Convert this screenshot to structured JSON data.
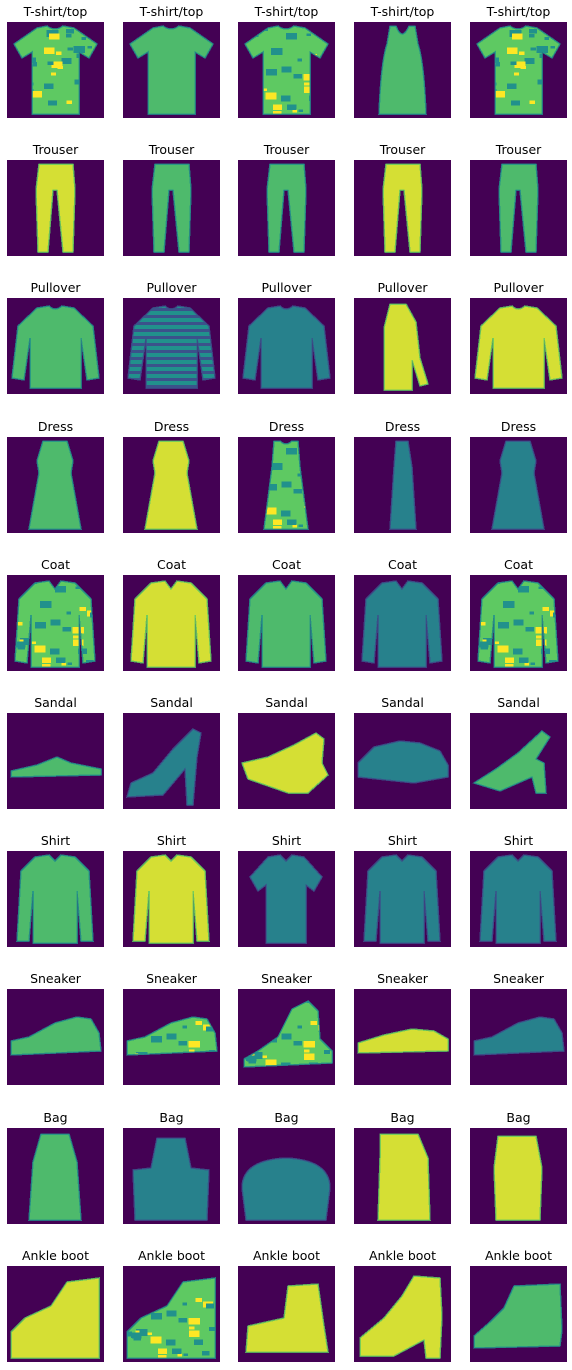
{
  "figure": {
    "image_type": "grid of 28x28 grayscale clothing thumbnails rendered with a viridis colormap",
    "colormap": [
      "#440154",
      "#3b528b",
      "#21918c",
      "#5ec962",
      "#fde725"
    ],
    "background_color": "#440154",
    "rows": [
      {
        "label": "T-shirt/top",
        "cells": [
          {
            "title": "T-shirt/top",
            "shape": "tshirt",
            "pattern": "camo"
          },
          {
            "title": "T-shirt/top",
            "shape": "tshirt",
            "pattern": "solid"
          },
          {
            "title": "T-shirt/top",
            "shape": "tshirt",
            "pattern": "print"
          },
          {
            "title": "T-shirt/top",
            "shape": "tank",
            "pattern": "solid"
          },
          {
            "title": "T-shirt/top",
            "shape": "tshirt",
            "pattern": "camo"
          }
        ]
      },
      {
        "label": "Trouser",
        "cells": [
          {
            "title": "Trouser",
            "shape": "trouser",
            "pattern": "bright"
          },
          {
            "title": "Trouser",
            "shape": "trouser",
            "pattern": "solid"
          },
          {
            "title": "Trouser",
            "shape": "trouser",
            "pattern": "slim"
          },
          {
            "title": "Trouser",
            "shape": "trouser",
            "pattern": "bright"
          },
          {
            "title": "Trouser",
            "shape": "trouser",
            "pattern": "solid"
          }
        ]
      },
      {
        "label": "Pullover",
        "cells": [
          {
            "title": "Pullover",
            "shape": "pullover",
            "pattern": "solid"
          },
          {
            "title": "Pullover",
            "shape": "pullover",
            "pattern": "striped"
          },
          {
            "title": "Pullover",
            "shape": "pullover",
            "pattern": "dark"
          },
          {
            "title": "Pullover",
            "shape": "pullover-side",
            "pattern": "bright"
          },
          {
            "title": "Pullover",
            "shape": "pullover",
            "pattern": "bright"
          }
        ]
      },
      {
        "label": "Dress",
        "cells": [
          {
            "title": "Dress",
            "shape": "dress",
            "pattern": "solid"
          },
          {
            "title": "Dress",
            "shape": "dress",
            "pattern": "bright"
          },
          {
            "title": "Dress",
            "shape": "dress-sleeveless",
            "pattern": "print"
          },
          {
            "title": "Dress",
            "shape": "dress-thin",
            "pattern": "dark"
          },
          {
            "title": "Dress",
            "shape": "dress",
            "pattern": "dark"
          }
        ]
      },
      {
        "label": "Coat",
        "cells": [
          {
            "title": "Coat",
            "shape": "coat",
            "pattern": "print"
          },
          {
            "title": "Coat",
            "shape": "coat",
            "pattern": "bright"
          },
          {
            "title": "Coat",
            "shape": "coat",
            "pattern": "solid"
          },
          {
            "title": "Coat",
            "shape": "coat",
            "pattern": "dark"
          },
          {
            "title": "Coat",
            "shape": "coat",
            "pattern": "print"
          }
        ]
      },
      {
        "label": "Sandal",
        "cells": [
          {
            "title": "Sandal",
            "shape": "sandal-flat",
            "pattern": "solid"
          },
          {
            "title": "Sandal",
            "shape": "sandal-heel",
            "pattern": "dark"
          },
          {
            "title": "Sandal",
            "shape": "sandal-wedge",
            "pattern": "bright"
          },
          {
            "title": "Sandal",
            "shape": "sandal-strappy",
            "pattern": "dark"
          },
          {
            "title": "Sandal",
            "shape": "sandal-block",
            "pattern": "solid"
          }
        ]
      },
      {
        "label": "Shirt",
        "cells": [
          {
            "title": "Shirt",
            "shape": "shirt",
            "pattern": "solid"
          },
          {
            "title": "Shirt",
            "shape": "shirt",
            "pattern": "bright"
          },
          {
            "title": "Shirt",
            "shape": "shirt-short",
            "pattern": "dark"
          },
          {
            "title": "Shirt",
            "shape": "shirt",
            "pattern": "dark"
          },
          {
            "title": "Shirt",
            "shape": "shirt",
            "pattern": "dark"
          }
        ]
      },
      {
        "label": "Sneaker",
        "cells": [
          {
            "title": "Sneaker",
            "shape": "sneaker",
            "pattern": "solid"
          },
          {
            "title": "Sneaker",
            "shape": "sneaker",
            "pattern": "print"
          },
          {
            "title": "Sneaker",
            "shape": "sneaker-high",
            "pattern": "print"
          },
          {
            "title": "Sneaker",
            "shape": "sneaker-low",
            "pattern": "bright"
          },
          {
            "title": "Sneaker",
            "shape": "sneaker",
            "pattern": "dark"
          }
        ]
      },
      {
        "label": "Bag",
        "cells": [
          {
            "title": "Bag",
            "shape": "bag-tote",
            "pattern": "solid"
          },
          {
            "title": "Bag",
            "shape": "bag-handbag",
            "pattern": "dark"
          },
          {
            "title": "Bag",
            "shape": "bag-round",
            "pattern": "dark"
          },
          {
            "title": "Bag",
            "shape": "bag-backpack",
            "pattern": "bright"
          },
          {
            "title": "Bag",
            "shape": "bag-bucket",
            "pattern": "bright"
          }
        ]
      },
      {
        "label": "Ankle boot",
        "cells": [
          {
            "title": "Ankle boot",
            "shape": "boot",
            "pattern": "bright"
          },
          {
            "title": "Ankle boot",
            "shape": "boot",
            "pattern": "print"
          },
          {
            "title": "Ankle boot",
            "shape": "boot-ugg",
            "pattern": "bright"
          },
          {
            "title": "Ankle boot",
            "shape": "boot-heel",
            "pattern": "bright"
          },
          {
            "title": "Ankle boot",
            "shape": "boot-pair",
            "pattern": "solid"
          }
        ]
      }
    ]
  }
}
